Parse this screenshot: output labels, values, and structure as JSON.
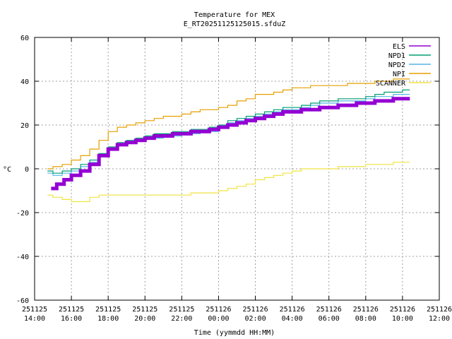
{
  "chart_data": {
    "type": "line",
    "title": "Temperature for MEX",
    "subtitle": "E_RT20251125125015.sfduZ",
    "xlabel": "Time (yymmdd HH:MM)",
    "ylabel": "°C",
    "ylim": [
      -60,
      60
    ],
    "yticks": [
      -60,
      -40,
      -20,
      0,
      20,
      40,
      60
    ],
    "xlim_hours": [
      14,
      36
    ],
    "xticks": [
      {
        "h": 14,
        "date": "251125",
        "time": "14:00"
      },
      {
        "h": 16,
        "date": "251125",
        "time": "16:00"
      },
      {
        "h": 18,
        "date": "251125",
        "time": "18:00"
      },
      {
        "h": 20,
        "date": "251125",
        "time": "20:00"
      },
      {
        "h": 22,
        "date": "251125",
        "time": "22:00"
      },
      {
        "h": 24,
        "date": "251126",
        "time": "00:00"
      },
      {
        "h": 26,
        "date": "251126",
        "time": "02:00"
      },
      {
        "h": 28,
        "date": "251126",
        "time": "04:00"
      },
      {
        "h": 30,
        "date": "251126",
        "time": "06:00"
      },
      {
        "h": 32,
        "date": "251126",
        "time": "08:00"
      },
      {
        "h": 34,
        "date": "251126",
        "time": "10:00"
      },
      {
        "h": 36,
        "date": "251126",
        "time": "12:00"
      }
    ],
    "grid": true,
    "legend_position": "top-right",
    "series": [
      {
        "name": "ELS",
        "color": "#9400d3",
        "width": 5,
        "x": [
          14.9,
          15.2,
          15.6,
          16.0,
          16.5,
          17.0,
          17.5,
          18.0,
          18.5,
          19.0,
          19.5,
          20.0,
          20.5,
          21.0,
          21.5,
          22.0,
          22.5,
          23.0,
          23.5,
          24.0,
          24.5,
          25.0,
          25.5,
          26.0,
          26.5,
          27.0,
          27.5,
          28.0,
          28.5,
          29.0,
          29.5,
          30.0,
          30.5,
          31.0,
          31.5,
          32.0,
          32.5,
          33.0,
          33.5,
          34.0,
          34.4
        ],
        "y": [
          -9,
          -7,
          -5,
          -3,
          -1,
          2,
          6,
          9,
          11,
          12,
          13,
          14,
          15,
          15,
          16,
          16,
          17,
          17,
          18,
          19,
          20,
          21,
          22,
          23,
          24,
          25,
          26,
          26,
          27,
          27,
          28,
          28,
          29,
          29,
          30,
          30,
          31,
          31,
          32,
          32,
          32
        ]
      },
      {
        "name": "NPD1",
        "color": "#009e73",
        "width": 1.2,
        "x": [
          14.7,
          15.0,
          15.5,
          16.0,
          16.5,
          17.0,
          17.5,
          18.0,
          18.5,
          19.0,
          19.5,
          20.0,
          20.5,
          21.0,
          21.5,
          22.0,
          22.5,
          23.0,
          23.5,
          24.0,
          24.5,
          25.0,
          25.5,
          26.0,
          26.5,
          27.0,
          27.5,
          28.0,
          28.5,
          29.0,
          29.5,
          30.0,
          30.5,
          31.0,
          31.5,
          32.0,
          32.5,
          33.0,
          33.5,
          34.0,
          34.4
        ],
        "y": [
          -1,
          -2,
          -1,
          0,
          2,
          4,
          7,
          10,
          12,
          13,
          14,
          15,
          16,
          16,
          17,
          17,
          18,
          18,
          19,
          20,
          22,
          23,
          24,
          25,
          26,
          27,
          28,
          28,
          29,
          30,
          31,
          31,
          32,
          32,
          32,
          33,
          34,
          35,
          35,
          36,
          36
        ]
      },
      {
        "name": "NPD2",
        "color": "#56b4e9",
        "width": 1.2,
        "x": [
          14.7,
          15.0,
          15.5,
          16.0,
          16.5,
          17.0,
          17.5,
          18.0,
          18.5,
          19.0,
          19.5,
          20.0,
          20.5,
          21.0,
          21.5,
          22.0,
          22.5,
          23.0,
          23.5,
          24.0,
          24.5,
          25.0,
          25.5,
          26.0,
          26.5,
          27.0,
          27.5,
          28.0,
          28.5,
          29.0,
          29.5,
          30.0,
          30.5,
          31.0,
          31.5,
          32.0,
          32.5,
          33.0,
          33.5,
          34.0,
          34.4
        ],
        "y": [
          -2,
          -3,
          -2,
          -1,
          1,
          3,
          6,
          9,
          11,
          12,
          13,
          14,
          14,
          15,
          15,
          16,
          16,
          17,
          17,
          19,
          21,
          22,
          23,
          24,
          25,
          26,
          27,
          27,
          28,
          29,
          30,
          30,
          31,
          31,
          31,
          32,
          33,
          33,
          34,
          34,
          34
        ]
      },
      {
        "name": "NPI",
        "color": "#e69f00",
        "width": 1.2,
        "x": [
          14.7,
          15.0,
          15.5,
          16.0,
          16.5,
          17.0,
          17.5,
          18.0,
          18.5,
          19.0,
          19.5,
          20.0,
          20.5,
          21.0,
          21.5,
          22.0,
          22.5,
          23.0,
          23.5,
          24.0,
          24.5,
          25.0,
          25.5,
          26.0,
          26.5,
          27.0,
          27.5,
          28.0,
          28.5,
          29.0,
          29.5,
          30.0,
          30.5,
          31.0,
          31.5,
          32.0,
          32.5,
          33.0,
          33.5,
          34.0,
          34.4
        ],
        "y": [
          0,
          1,
          2,
          4,
          6,
          9,
          13,
          17,
          19,
          20,
          21,
          22,
          23,
          24,
          24,
          25,
          26,
          27,
          27,
          28,
          29,
          31,
          32,
          34,
          34,
          35,
          36,
          37,
          37,
          38,
          38,
          38,
          38,
          39,
          39,
          39,
          40,
          40,
          41,
          41,
          41
        ]
      },
      {
        "name": "SCANNER",
        "color": "#f0e442",
        "width": 1.2,
        "x": [
          14.7,
          15.0,
          15.5,
          16.0,
          16.5,
          17.0,
          17.5,
          18.0,
          18.5,
          19.0,
          19.5,
          20.0,
          20.5,
          21.0,
          21.5,
          22.0,
          22.5,
          23.0,
          23.5,
          24.0,
          24.5,
          25.0,
          25.5,
          26.0,
          26.5,
          27.0,
          27.5,
          28.0,
          28.5,
          29.0,
          29.5,
          30.0,
          30.5,
          31.0,
          31.5,
          32.0,
          32.5,
          33.0,
          33.5,
          34.0,
          34.4
        ],
        "y": [
          -12,
          -13,
          -14,
          -15,
          -15,
          -13,
          -12,
          -12,
          -12,
          -12,
          -12,
          -12,
          -12,
          -12,
          -12,
          -12,
          -11,
          -11,
          -11,
          -10,
          -9,
          -8,
          -7,
          -5,
          -4,
          -3,
          -2,
          -1,
          0,
          0,
          0,
          0,
          1,
          1,
          1,
          2,
          2,
          2,
          3,
          3,
          3
        ]
      }
    ]
  }
}
